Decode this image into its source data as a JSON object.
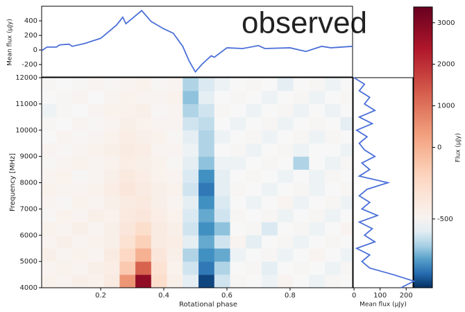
{
  "chart_data": [
    {
      "type": "heatmap",
      "colormap": "RdBu_r",
      "xlabel": "Rotational phase",
      "ylabel": "Frequency [MHz]",
      "colorbar_label": "Flux (μJy)",
      "xlim": [
        0.013,
        0.998
      ],
      "ylim": [
        4000,
        12000
      ],
      "xticks": [
        0.2,
        0.4,
        0.6,
        0.8
      ],
      "yticks": [
        4000,
        5000,
        6000,
        7000,
        8000,
        9000,
        10000,
        11000,
        12000
      ],
      "zlim": [
        -980,
        3380
      ],
      "zticks": [
        -500,
        0,
        1000,
        2000,
        3000
      ],
      "xbins": [
        0.013,
        0.06,
        0.11,
        0.16,
        0.21,
        0.26,
        0.31,
        0.36,
        0.41,
        0.46,
        0.51,
        0.56,
        0.61,
        0.66,
        0.71,
        0.76,
        0.81,
        0.86,
        0.91,
        0.96,
        0.998
      ],
      "ybins": [
        4000,
        4500,
        5000,
        5500,
        6000,
        6500,
        7000,
        7500,
        8000,
        8500,
        9000,
        9500,
        10000,
        10500,
        11000,
        11500,
        12000
      ],
      "z": [
        [
          150,
          100,
          200,
          150,
          300,
          1500,
          3000,
          600,
          200,
          -100,
          -900,
          -200,
          50,
          0,
          -50,
          100,
          0,
          -50,
          50,
          0
        ],
        [
          100,
          150,
          100,
          200,
          250,
          900,
          2000,
          500,
          150,
          -200,
          -700,
          -300,
          0,
          50,
          -100,
          0,
          50,
          0,
          -50,
          50
        ],
        [
          200,
          100,
          150,
          100,
          300,
          700,
          1200,
          400,
          200,
          -300,
          -600,
          -500,
          -50,
          0,
          50,
          -50,
          0,
          100,
          0,
          -50
        ],
        [
          100,
          200,
          100,
          150,
          200,
          500,
          800,
          300,
          250,
          -100,
          -500,
          -200,
          100,
          -100,
          0,
          50,
          -50,
          0,
          50,
          0
        ],
        [
          150,
          100,
          200,
          100,
          200,
          400,
          600,
          300,
          200,
          -200,
          -600,
          -400,
          0,
          50,
          -150,
          0,
          50,
          -50,
          0,
          100
        ],
        [
          50,
          150,
          100,
          200,
          150,
          350,
          400,
          250,
          150,
          -150,
          -500,
          -200,
          50,
          0,
          50,
          -50,
          0,
          50,
          -50,
          0
        ],
        [
          100,
          50,
          150,
          100,
          200,
          300,
          350,
          200,
          100,
          -100,
          -600,
          -150,
          0,
          -50,
          0,
          100,
          -50,
          0,
          50,
          -50
        ],
        [
          150,
          100,
          100,
          150,
          250,
          400,
          300,
          200,
          150,
          -200,
          -700,
          -100,
          50,
          0,
          -50,
          0,
          50,
          -50,
          0,
          50
        ],
        [
          100,
          150,
          50,
          100,
          200,
          350,
          250,
          150,
          100,
          -150,
          -600,
          -100,
          0,
          50,
          0,
          -50,
          0,
          -50,
          50,
          0
        ],
        [
          50,
          100,
          150,
          100,
          150,
          250,
          200,
          150,
          50,
          -100,
          -400,
          -50,
          -50,
          0,
          50,
          0,
          -300,
          0,
          -50,
          50
        ],
        [
          100,
          50,
          100,
          150,
          200,
          300,
          250,
          100,
          100,
          -50,
          -300,
          0,
          50,
          -50,
          0,
          50,
          -50,
          0,
          0,
          -50
        ],
        [
          0,
          100,
          50,
          100,
          150,
          250,
          200,
          150,
          50,
          -100,
          -300,
          -50,
          0,
          50,
          -50,
          0,
          50,
          -50,
          50,
          0
        ],
        [
          50,
          0,
          100,
          50,
          100,
          200,
          150,
          100,
          100,
          -200,
          -250,
          0,
          -50,
          0,
          50,
          -50,
          0,
          50,
          0,
          -100
        ],
        [
          -50,
          50,
          0,
          100,
          150,
          150,
          200,
          50,
          100,
          -300,
          -200,
          50,
          0,
          -50,
          0,
          50,
          -50,
          0,
          -50,
          0
        ],
        [
          0,
          50,
          100,
          0,
          100,
          150,
          100,
          100,
          150,
          -400,
          -100,
          0,
          50,
          0,
          -50,
          0,
          50,
          -50,
          0,
          50
        ],
        [
          50,
          0,
          50,
          100,
          50,
          100,
          150,
          50,
          100,
          -300,
          -150,
          -50,
          0,
          50,
          0,
          -100,
          0,
          50,
          -50,
          0
        ]
      ]
    },
    {
      "type": "line",
      "ylabel": "Mean flux (μJy)",
      "annotation": "observed",
      "color": "#4a6fd8",
      "xlim": [
        0.013,
        0.998
      ],
      "ylim": [
        -370,
        600
      ],
      "yticks": [
        -200,
        0,
        200,
        400
      ],
      "x": [
        0.013,
        0.03,
        0.06,
        0.07,
        0.1,
        0.11,
        0.15,
        0.2,
        0.25,
        0.27,
        0.28,
        0.33,
        0.36,
        0.4,
        0.43,
        0.46,
        0.48,
        0.5,
        0.52,
        0.55,
        0.56,
        0.6,
        0.65,
        0.7,
        0.72,
        0.8,
        0.85,
        0.9,
        0.93,
        0.998
      ],
      "values": [
        -10,
        40,
        40,
        70,
        80,
        50,
        90,
        160,
        340,
        450,
        360,
        540,
        390,
        290,
        230,
        50,
        -150,
        -300,
        -200,
        -80,
        -100,
        30,
        20,
        60,
        20,
        30,
        -20,
        50,
        30,
        50
      ]
    },
    {
      "type": "line",
      "orientation": "horizontal",
      "xlabel": "Mean flux (μJy)",
      "color": "#4a6fd8",
      "xlim": [
        -3,
        226
      ],
      "ylim": [
        4000,
        12000
      ],
      "xticks": [
        0,
        100,
        200
      ],
      "y": [
        4000,
        4250,
        4500,
        4750,
        5000,
        5250,
        5500,
        5750,
        6000,
        6250,
        6500,
        6750,
        7000,
        7250,
        7500,
        7750,
        8000,
        8250,
        8500,
        8750,
        9000,
        9250,
        9500,
        9750,
        10000,
        10250,
        10500,
        10750,
        11000,
        11250,
        11500,
        11750,
        12000
      ],
      "values": [
        180,
        230,
        150,
        60,
        30,
        60,
        10,
        80,
        40,
        70,
        20,
        90,
        30,
        60,
        20,
        50,
        130,
        20,
        60,
        30,
        80,
        40,
        20,
        50,
        10,
        70,
        20,
        80,
        40,
        60,
        20,
        40,
        0
      ]
    }
  ]
}
